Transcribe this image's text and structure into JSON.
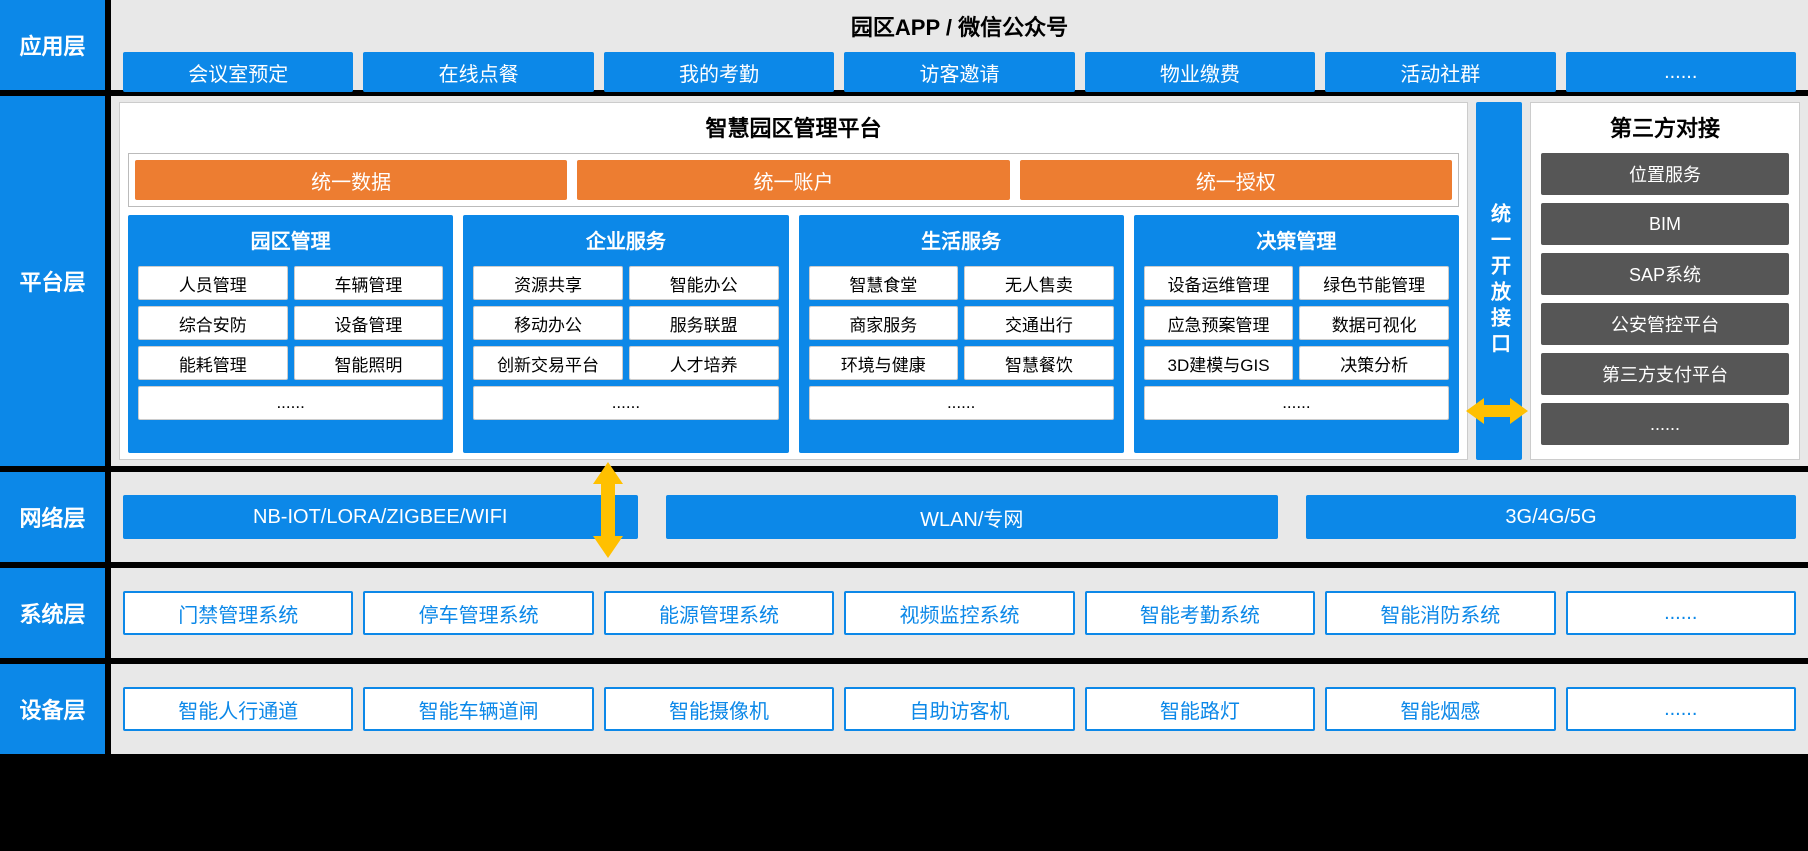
{
  "colors": {
    "blue": "#0c88e8",
    "orange": "#ed7d31",
    "arrow": "#ffc000",
    "gray_fill": "#565656",
    "bg_panel": "#e8e8e8",
    "black": "#000000",
    "white": "#ffffff"
  },
  "layers": {
    "app": "应用层",
    "platform": "平台层",
    "network": "网络层",
    "system": "系统层",
    "device": "设备层"
  },
  "app_layer": {
    "header": "园区APP / 微信公众号",
    "items": [
      "会议室预定",
      "在线点餐",
      "我的考勤",
      "访客邀请",
      "物业缴费",
      "活动社群",
      "......"
    ]
  },
  "platform_layer": {
    "main_title": "智慧园区管理平台",
    "unified": [
      "统一数据",
      "统一账户",
      "统一授权"
    ],
    "modules": [
      {
        "title": "园区管理",
        "items": [
          "人员管理",
          "车辆管理",
          "综合安防",
          "设备管理",
          "能耗管理",
          "智能照明"
        ],
        "more": "......"
      },
      {
        "title": "企业服务",
        "items": [
          "资源共享",
          "智能办公",
          "移动办公",
          "服务联盟",
          "创新交易平台",
          "人才培养"
        ],
        "more": "......"
      },
      {
        "title": "生活服务",
        "items": [
          "智慧食堂",
          "无人售卖",
          "商家服务",
          "交通出行",
          "环境与健康",
          "智慧餐饮"
        ],
        "more": "......"
      },
      {
        "title": "决策管理",
        "items": [
          "设备运维管理",
          "绿色节能管理",
          "应急预案管理",
          "数据可视化",
          "3D建模与GIS",
          "决策分析"
        ],
        "more": "......"
      }
    ],
    "open_api": "统一开放接口",
    "thirdparty_title": "第三方对接",
    "thirdparty_items": [
      "位置服务",
      "BIM",
      "SAP系统",
      "公安管控平台",
      "第三方支付平台",
      "......"
    ]
  },
  "network_layer": {
    "items": [
      "NB-IOT/LORA/ZIGBEE/WIFI",
      "WLAN/专网",
      "3G/4G/5G"
    ]
  },
  "system_layer": {
    "items": [
      "门禁管理系统",
      "停车管理系统",
      "能源管理系统",
      "视频监控系统",
      "智能考勤系统",
      "智能消防系统",
      "......"
    ]
  },
  "device_layer": {
    "items": [
      "智能人行通道",
      "智能车辆道闸",
      "智能摄像机",
      "自助访客机",
      "智能路灯",
      "智能烟感",
      "......"
    ]
  }
}
